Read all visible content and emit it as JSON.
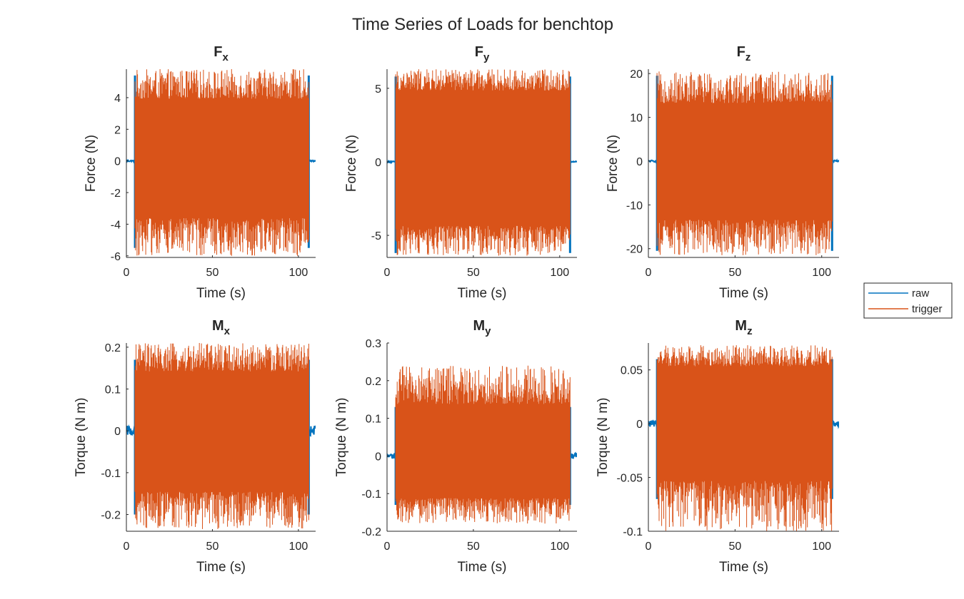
{
  "figure": {
    "title": "Time Series of Loads for benchtop",
    "colors": {
      "raw": "#0072BD",
      "trigger": "#D95319",
      "axis": "#262626"
    }
  },
  "legend": {
    "entries": [
      {
        "label": "raw",
        "color": "#0072BD"
      },
      {
        "label": "trigger",
        "color": "#D95319"
      }
    ],
    "placement": "right"
  },
  "chart_data": [
    {
      "type": "line",
      "title": "F",
      "title_sub": "x",
      "xlabel": "Time (s)",
      "ylabel": "Force (N)",
      "xlim": [
        0,
        110
      ],
      "ylim": [
        -6.1,
        5.8
      ],
      "xticks": [
        0,
        50,
        100
      ],
      "yticks": [
        -6,
        -4,
        -2,
        0,
        2,
        4
      ],
      "trigger_window": [
        5,
        106
      ],
      "series": [
        {
          "name": "raw",
          "envelope": {
            "trigger_on": {
              "max": 5.4,
              "min": -5.5
            },
            "idle": {
              "max": 0.05,
              "min": -0.05
            }
          }
        },
        {
          "name": "trigger",
          "envelope": {
            "core": [
              -3.2,
              3.6
            ],
            "peaks": [
              -6.0,
              5.8
            ]
          }
        }
      ]
    },
    {
      "type": "line",
      "title": "F",
      "title_sub": "y",
      "xlabel": "Time (s)",
      "ylabel": "Force (N)",
      "xlim": [
        0,
        110
      ],
      "ylim": [
        -6.5,
        6.3
      ],
      "xticks": [
        0,
        50,
        100
      ],
      "yticks": [
        -5,
        0,
        5
      ],
      "trigger_window": [
        5,
        106
      ],
      "series": [
        {
          "name": "raw",
          "envelope": {
            "trigger_on": {
              "max": 5.8,
              "min": -6.2
            },
            "idle": {
              "max": 0.05,
              "min": -0.05
            }
          }
        },
        {
          "name": "trigger",
          "envelope": {
            "core": [
              -4.0,
              4.6
            ],
            "peaks": [
              -6.4,
              6.3
            ]
          }
        }
      ]
    },
    {
      "type": "line",
      "title": "F",
      "title_sub": "z",
      "xlabel": "Time (s)",
      "ylabel": "Force (N)",
      "xlim": [
        0,
        110
      ],
      "ylim": [
        -22,
        21
      ],
      "xticks": [
        0,
        50,
        100
      ],
      "yticks": [
        -20,
        -10,
        0,
        10,
        20
      ],
      "trigger_window": [
        5,
        106
      ],
      "series": [
        {
          "name": "raw",
          "envelope": {
            "trigger_on": {
              "max": 19.5,
              "min": -20.5
            },
            "idle": {
              "max": 0.2,
              "min": -0.2
            }
          }
        },
        {
          "name": "trigger",
          "envelope": {
            "core": [
              -12.0,
              12.0
            ],
            "peaks": [
              -21.5,
              20.5
            ]
          }
        }
      ]
    },
    {
      "type": "line",
      "title": "M",
      "title_sub": "x",
      "xlabel": "Time (s)",
      "ylabel": "Torque (N m)",
      "xlim": [
        0,
        110
      ],
      "ylim": [
        -0.24,
        0.21
      ],
      "xticks": [
        0,
        50,
        100
      ],
      "yticks": [
        -0.2,
        -0.1,
        0,
        0.1,
        0.2
      ],
      "trigger_window": [
        5,
        106
      ],
      "series": [
        {
          "name": "raw",
          "envelope": {
            "trigger_on": {
              "max": 0.17,
              "min": -0.2
            },
            "idle": {
              "max": 0.012,
              "min": -0.012
            }
          }
        },
        {
          "name": "trigger",
          "envelope": {
            "core": [
              -0.13,
              0.13
            ],
            "peaks": [
              -0.235,
              0.21
            ]
          }
        }
      ]
    },
    {
      "type": "line",
      "title": "M",
      "title_sub": "y",
      "xlabel": "Time (s)",
      "ylabel": "Torque (N m)",
      "xlim": [
        0,
        110
      ],
      "ylim": [
        -0.2,
        0.3
      ],
      "xticks": [
        0,
        50,
        100
      ],
      "yticks": [
        -0.2,
        -0.1,
        0,
        0.1,
        0.2,
        0.3
      ],
      "trigger_window": [
        5,
        106
      ],
      "series": [
        {
          "name": "raw",
          "envelope": {
            "trigger_on": {
              "max": 0.13,
              "min": -0.13
            },
            "idle": {
              "max": 0.008,
              "min": -0.008
            }
          }
        },
        {
          "name": "trigger",
          "envelope": {
            "core": [
              -0.1,
              0.12
            ],
            "peaks": [
              -0.18,
              0.24
            ]
          }
        }
      ]
    },
    {
      "type": "line",
      "title": "M",
      "title_sub": "z",
      "xlabel": "Time (s)",
      "ylabel": "Torque (N m)",
      "xlim": [
        0,
        110
      ],
      "ylim": [
        -0.1,
        0.075
      ],
      "xticks": [
        0,
        50,
        100
      ],
      "yticks": [
        -0.1,
        -0.05,
        0,
        0.05
      ],
      "trigger_window": [
        5,
        106
      ],
      "series": [
        {
          "name": "raw",
          "envelope": {
            "trigger_on": {
              "max": 0.06,
              "min": -0.07
            },
            "idle": {
              "max": 0.003,
              "min": -0.003
            }
          }
        },
        {
          "name": "trigger",
          "envelope": {
            "core": [
              -0.045,
              0.05
            ],
            "peaks": [
              -0.1,
              0.073
            ]
          }
        }
      ]
    }
  ]
}
